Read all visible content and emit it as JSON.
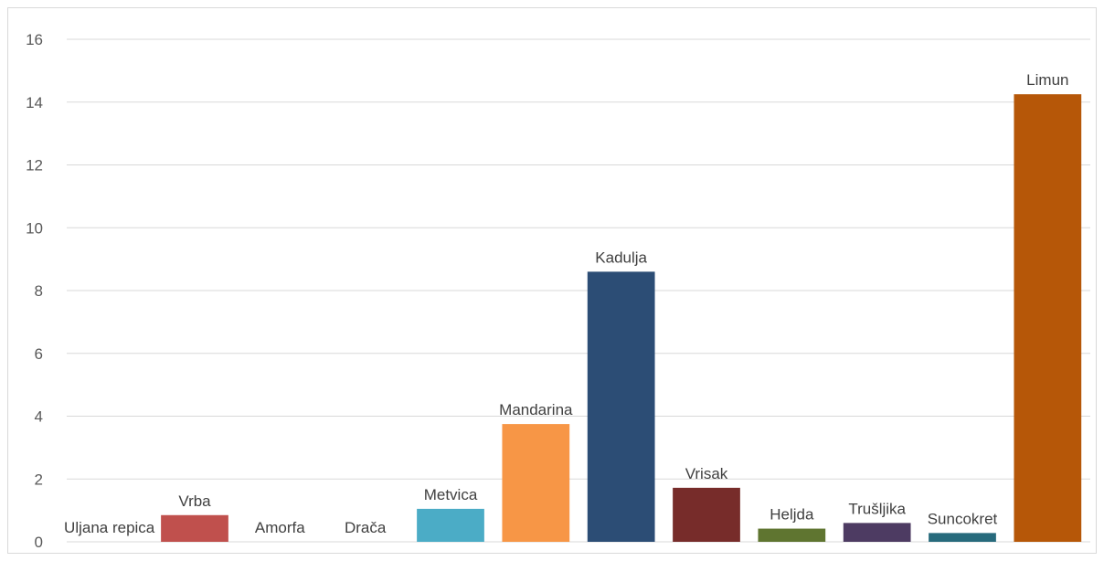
{
  "chart_data": {
    "type": "bar",
    "categories": [
      "Uljana repica",
      "Vrba",
      "Amorfa",
      "Drača",
      "Metvica",
      "Mandarina",
      "Kadulja",
      "Vrisak",
      "Heljda",
      "Trušljika",
      "Suncokret",
      "Limun"
    ],
    "values": [
      0,
      0.85,
      0,
      0,
      1.05,
      3.75,
      8.6,
      1.72,
      0.42,
      0.6,
      0.28,
      14.25
    ],
    "colors": [
      "#4472C4",
      "#C0504D",
      "#9BBB59",
      "#8064A2",
      "#4BACC6",
      "#F79646",
      "#2C4D75",
      "#772C2A",
      "#5F7530",
      "#4D3B62",
      "#276A7C",
      "#B65708"
    ],
    "data_labels": [
      "Uljana repica",
      "Vrba",
      "Amorfa",
      "Drača",
      "Metvica",
      "Mandarina",
      "Kadulja",
      "Vrisak",
      "Heljda",
      "Trušljika",
      "Suncokret",
      "Limun"
    ],
    "y_ticks": [
      "0",
      "2",
      "4",
      "6",
      "8",
      "10",
      "12",
      "14",
      "16"
    ],
    "ylim": [
      0,
      16
    ],
    "grid": true,
    "gridline_color": "#d9d9d9",
    "title": "",
    "xlabel": "",
    "ylabel": ""
  }
}
